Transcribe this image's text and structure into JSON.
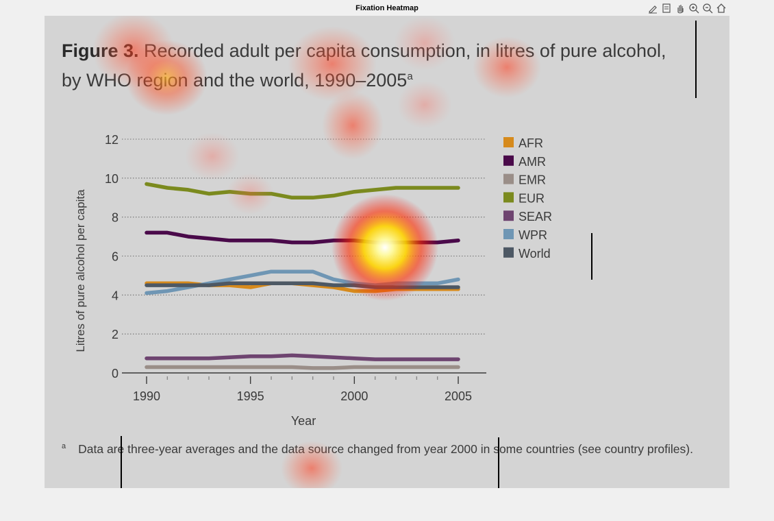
{
  "window": {
    "title": "Fixation Heatmap"
  },
  "toolbar": {
    "buttons": [
      {
        "name": "edit-plot",
        "icon": "pencil-icon"
      },
      {
        "name": "data-tips",
        "icon": "datatip-icon"
      },
      {
        "name": "pan",
        "icon": "hand-icon"
      },
      {
        "name": "zoom-in",
        "icon": "zoom-in-icon"
      },
      {
        "name": "zoom-out",
        "icon": "zoom-out-icon"
      },
      {
        "name": "restore-view",
        "icon": "home-icon"
      }
    ]
  },
  "figure": {
    "label": "Figure 3.",
    "title_line1": "Recorded adult per capita consumption, in litres of pure alcohol,",
    "title_line2": "by WHO region and the world, 1990–2005",
    "title_superscript": "a",
    "footnote_mark": "a",
    "footnote": "Data are three-year averages and the data source changed from year 2000 in some countries (see country profiles)."
  },
  "chart_data": {
    "type": "line",
    "title": "Recorded adult per capita consumption, in litres of pure alcohol, by WHO region and the world, 1990–2005",
    "xlabel": "Year",
    "ylabel": "Litres of pure alcohol per capita",
    "x": [
      1990,
      1991,
      1992,
      1993,
      1994,
      1995,
      1996,
      1997,
      1998,
      1999,
      2000,
      2001,
      2002,
      2003,
      2004,
      2005
    ],
    "xticks": [
      1990,
      1995,
      2000,
      2005
    ],
    "xlim": [
      1990,
      2005
    ],
    "ylim": [
      0,
      12
    ],
    "yticks": [
      0,
      2,
      4,
      6,
      8,
      10,
      12
    ],
    "grid": "horizontal dotted",
    "legend_position": "right",
    "series": [
      {
        "name": "AFR",
        "color": "#d68a1c",
        "values": [
          4.6,
          4.6,
          4.6,
          4.5,
          4.5,
          4.4,
          4.6,
          4.6,
          4.5,
          4.4,
          4.2,
          4.2,
          4.3,
          4.3,
          4.3,
          4.3
        ]
      },
      {
        "name": "AMR",
        "color": "#4a0a4a",
        "values": [
          7.2,
          7.2,
          7.0,
          6.9,
          6.8,
          6.8,
          6.8,
          6.7,
          6.7,
          6.8,
          6.8,
          6.7,
          6.7,
          6.7,
          6.7,
          6.8
        ]
      },
      {
        "name": "EMR",
        "color": "#9a8e88",
        "values": [
          0.3,
          0.3,
          0.3,
          0.3,
          0.3,
          0.3,
          0.3,
          0.3,
          0.25,
          0.25,
          0.3,
          0.3,
          0.3,
          0.3,
          0.3,
          0.3
        ]
      },
      {
        "name": "EUR",
        "color": "#7b8a1e",
        "values": [
          9.7,
          9.5,
          9.4,
          9.2,
          9.3,
          9.2,
          9.2,
          9.0,
          9.0,
          9.1,
          9.3,
          9.4,
          9.5,
          9.5,
          9.5,
          9.5
        ]
      },
      {
        "name": "SEAR",
        "color": "#6e4470",
        "values": [
          0.75,
          0.75,
          0.75,
          0.75,
          0.8,
          0.85,
          0.85,
          0.9,
          0.85,
          0.8,
          0.75,
          0.7,
          0.7,
          0.7,
          0.7,
          0.7
        ]
      },
      {
        "name": "WPR",
        "color": "#6f96b4",
        "values": [
          4.1,
          4.2,
          4.4,
          4.6,
          4.8,
          5.0,
          5.2,
          5.2,
          5.2,
          4.8,
          4.6,
          4.5,
          4.6,
          4.6,
          4.6,
          4.8
        ]
      },
      {
        "name": "World",
        "color": "#4d5864",
        "values": [
          4.5,
          4.5,
          4.5,
          4.5,
          4.6,
          4.6,
          4.6,
          4.6,
          4.6,
          4.5,
          4.5,
          4.4,
          4.4,
          4.4,
          4.4,
          4.4
        ]
      }
    ]
  }
}
